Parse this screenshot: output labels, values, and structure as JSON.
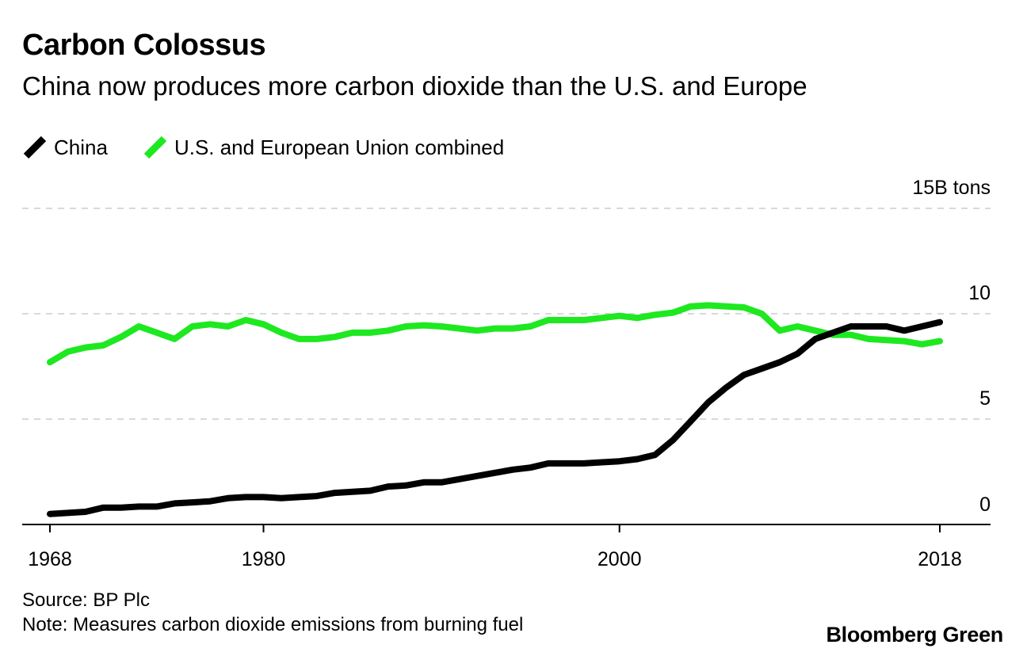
{
  "title": "Carbon Colossus",
  "subtitle": "China now produces more carbon dioxide than the U.S. and Europe",
  "legend": {
    "china": "China",
    "us_eu": "U.S. and European Union combined"
  },
  "colors": {
    "china": "#000000",
    "us_eu": "#1ee820",
    "grid": "#d9d9d9",
    "axis": "#000000"
  },
  "footer": {
    "source": "Source: BP Plc",
    "note": "Note: Measures carbon dioxide emissions from burning fuel"
  },
  "brand": "Bloomberg Green",
  "chart_data": {
    "type": "line",
    "title": "Carbon Colossus",
    "subtitle": "China now produces more carbon dioxide than the U.S. and Europe",
    "xlabel": "",
    "ylabel": "",
    "ylim": [
      0,
      15
    ],
    "xlim": [
      1968,
      2018
    ],
    "y_unit_label": "15B tons",
    "y_ticks": [
      {
        "value": 15,
        "label": "15B tons"
      },
      {
        "value": 10,
        "label": "10"
      },
      {
        "value": 5,
        "label": "5"
      },
      {
        "value": 0,
        "label": "0"
      }
    ],
    "x_ticks": [
      {
        "value": 1968,
        "label": "1968"
      },
      {
        "value": 1980,
        "label": "1980"
      },
      {
        "value": 2000,
        "label": "2000"
      },
      {
        "value": 2018,
        "label": "2018"
      }
    ],
    "grid": true,
    "legend_position": "top-left",
    "x": [
      1968,
      1969,
      1970,
      1971,
      1972,
      1973,
      1974,
      1975,
      1976,
      1977,
      1978,
      1979,
      1980,
      1981,
      1982,
      1983,
      1984,
      1985,
      1986,
      1987,
      1988,
      1989,
      1990,
      1991,
      1992,
      1993,
      1994,
      1995,
      1996,
      1997,
      1998,
      1999,
      2000,
      2001,
      2002,
      2003,
      2004,
      2005,
      2006,
      2007,
      2008,
      2009,
      2010,
      2011,
      2012,
      2013,
      2014,
      2015,
      2016,
      2017,
      2018
    ],
    "series": [
      {
        "name": "China",
        "color": "#000000",
        "values": [
          0.5,
          0.55,
          0.6,
          0.8,
          0.8,
          0.85,
          0.85,
          1.0,
          1.05,
          1.1,
          1.25,
          1.3,
          1.3,
          1.25,
          1.3,
          1.35,
          1.5,
          1.55,
          1.6,
          1.8,
          1.85,
          2.0,
          2.0,
          2.15,
          2.3,
          2.45,
          2.6,
          2.7,
          2.9,
          2.9,
          2.9,
          2.95,
          3.0,
          3.1,
          3.3,
          4.0,
          4.9,
          5.8,
          6.5,
          7.1,
          7.4,
          7.7,
          8.1,
          8.8,
          9.1,
          9.4,
          9.4,
          9.4,
          9.2,
          9.4,
          9.6
        ]
      },
      {
        "name": "U.S. and European Union combined",
        "color": "#1ee820",
        "values": [
          7.7,
          8.2,
          8.4,
          8.5,
          8.9,
          9.4,
          9.1,
          8.8,
          9.4,
          9.5,
          9.4,
          9.7,
          9.5,
          9.1,
          8.8,
          8.8,
          8.9,
          9.1,
          9.1,
          9.2,
          9.4,
          9.45,
          9.4,
          9.3,
          9.2,
          9.3,
          9.3,
          9.4,
          9.7,
          9.7,
          9.7,
          9.8,
          9.9,
          9.8,
          9.95,
          10.05,
          10.35,
          10.4,
          10.35,
          10.3,
          10.0,
          9.2,
          9.4,
          9.2,
          9.0,
          9.0,
          8.8,
          8.75,
          8.7,
          8.55,
          8.7
        ]
      }
    ]
  }
}
